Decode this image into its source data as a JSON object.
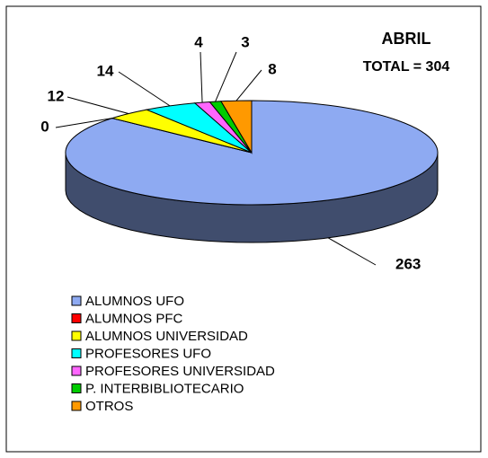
{
  "chart_data": {
    "type": "pie",
    "title": "ABRIL",
    "subtitle": "TOTAL = 304",
    "categories": [
      "ALUMNOS UFO",
      "ALUMNOS PFC",
      "ALUMNOS UNIVERSIDAD",
      "PROFESORES UFO",
      "PROFESORES UNIVERSIDAD",
      "P. INTERBIBLIOTECARIO",
      "OTROS"
    ],
    "values": [
      263,
      0,
      12,
      14,
      4,
      3,
      8
    ],
    "colors": [
      "#8eaaf2",
      "#ff0000",
      "#ffff00",
      "#00ffff",
      "#ff66ff",
      "#00cc00",
      "#ff9900"
    ],
    "legend": "bottom"
  }
}
